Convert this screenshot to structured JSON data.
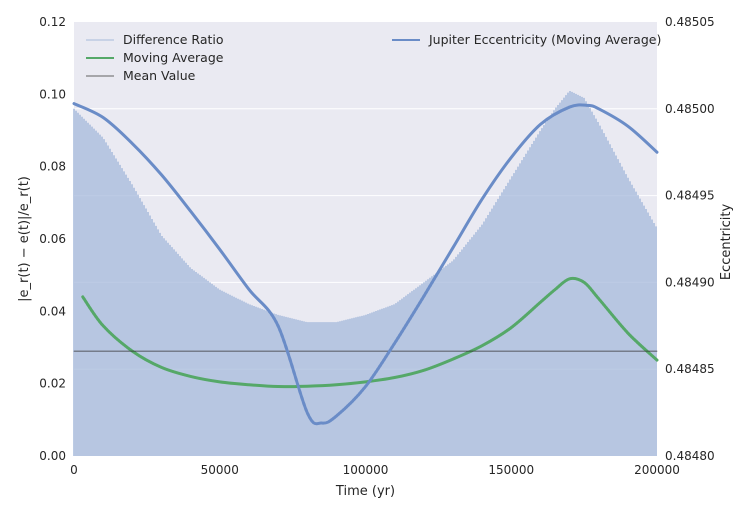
{
  "chart_data": {
    "type": "line",
    "xlabel": "Time (yr)",
    "ylabel_left": "|e_r(t) − e(t)|/e_r(t)",
    "ylabel_right": "Eccentricity",
    "xlim": [
      0,
      200000
    ],
    "ylim_left": [
      0.0,
      0.12
    ],
    "ylim_right": [
      0.4848,
      0.48505
    ],
    "x_ticks": [
      0,
      50000,
      100000,
      150000,
      200000
    ],
    "x_tick_labels": [
      "0",
      "50000",
      "100000",
      "150000",
      "200000"
    ],
    "y_left_ticks": [
      0.0,
      0.02,
      0.04,
      0.06,
      0.08,
      0.1,
      0.12
    ],
    "y_left_tick_labels": [
      "0.00",
      "0.02",
      "0.04",
      "0.06",
      "0.08",
      "0.10",
      "0.12"
    ],
    "y_right_ticks": [
      0.4848,
      0.48485,
      0.4849,
      0.48495,
      0.485,
      0.48505
    ],
    "y_right_tick_labels": [
      "0.48480",
      "0.48485",
      "0.48490",
      "0.48495",
      "0.48500",
      "0.48505"
    ],
    "grid": true,
    "legend_left": [
      "Difference Ratio",
      "Moving Average",
      "Mean Value"
    ],
    "legend_right": [
      "Jupiter Eccentricity (Moving Average)"
    ],
    "series": [
      {
        "name": "Difference Ratio",
        "axis": "left",
        "style": "dense oscillation band",
        "color": "#a7bbdb",
        "envelope_x": [
          0,
          10000,
          20000,
          30000,
          40000,
          50000,
          60000,
          70000,
          80000,
          90000,
          100000,
          110000,
          120000,
          130000,
          140000,
          150000,
          160000,
          165000,
          170000,
          175000,
          180000,
          190000,
          200000
        ],
        "envelope_upper": [
          0.096,
          0.088,
          0.075,
          0.061,
          0.052,
          0.046,
          0.042,
          0.039,
          0.037,
          0.037,
          0.039,
          0.042,
          0.048,
          0.054,
          0.064,
          0.077,
          0.09,
          0.096,
          0.101,
          0.099,
          0.092,
          0.077,
          0.063
        ],
        "envelope_lower": [
          0.0,
          0.0,
          0.0,
          0.0,
          0.0,
          0.0,
          0.0,
          0.0,
          0.0,
          0.0,
          0.0,
          0.0,
          0.0,
          0.0,
          0.0,
          0.0,
          0.0,
          0.0,
          0.0,
          0.0,
          0.0,
          0.0,
          0.0
        ]
      },
      {
        "name": "Moving Average",
        "axis": "left",
        "color": "#55a868",
        "x": [
          3000,
          10000,
          20000,
          30000,
          40000,
          50000,
          60000,
          70000,
          80000,
          90000,
          100000,
          110000,
          120000,
          130000,
          140000,
          150000,
          160000,
          165000,
          170000,
          175000,
          180000,
          190000,
          200000
        ],
        "y": [
          0.044,
          0.036,
          0.029,
          0.0245,
          0.022,
          0.0205,
          0.0197,
          0.0192,
          0.0193,
          0.0197,
          0.0205,
          0.0217,
          0.0237,
          0.0268,
          0.0305,
          0.0355,
          0.0425,
          0.046,
          0.049,
          0.048,
          0.0435,
          0.034,
          0.0265
        ]
      },
      {
        "name": "Mean Value",
        "axis": "left",
        "color": "#333333",
        "x": [
          0,
          200000
        ],
        "y": [
          0.029,
          0.029
        ]
      },
      {
        "name": "Jupiter Eccentricity (Moving Average)",
        "axis": "right",
        "color": "#6a8cc7",
        "x": [
          0,
          10000,
          20000,
          30000,
          40000,
          50000,
          60000,
          70000,
          80000,
          85000,
          90000,
          100000,
          110000,
          120000,
          130000,
          140000,
          150000,
          160000,
          170000,
          176000,
          180000,
          190000,
          200000
        ],
        "y": [
          0.485003,
          0.484995,
          0.48498,
          0.484962,
          0.484941,
          0.484919,
          0.484896,
          0.484875,
          0.484825,
          0.484819,
          0.484823,
          0.48484,
          0.484865,
          0.484892,
          0.48492,
          0.484948,
          0.484972,
          0.484991,
          0.485001,
          0.485002,
          0.485,
          0.48499,
          0.484975
        ]
      }
    ]
  }
}
